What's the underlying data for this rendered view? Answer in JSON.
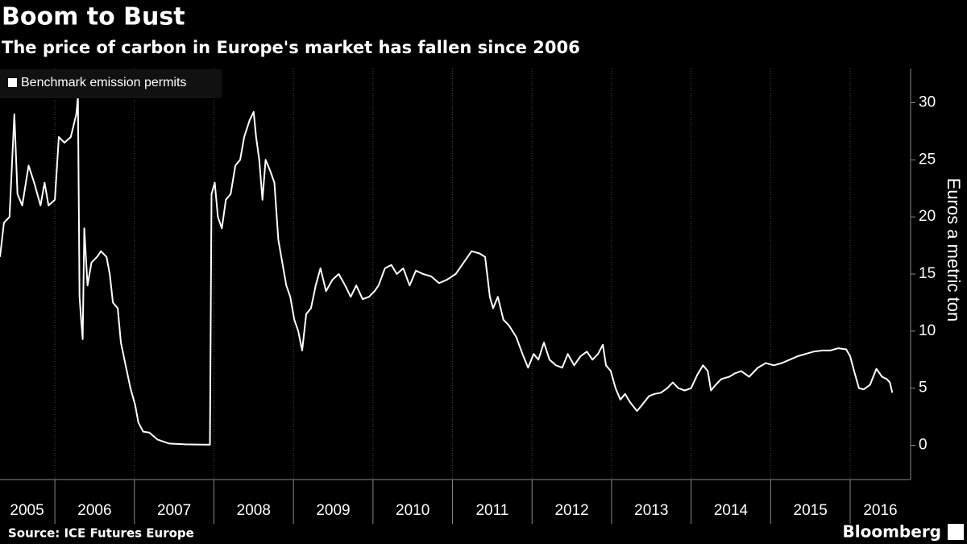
{
  "chart_data": {
    "type": "line",
    "title": "Boom to Bust",
    "subtitle": "The price of carbon in Europe's market has fallen since 2006",
    "y_label": "Euros a metric ton",
    "source": "Source: ICE Futures Europe",
    "brand": "Bloomberg",
    "legend": "top-left",
    "xlim": [
      2005.31,
      2016.76
    ],
    "ylim": [
      -3,
      33
    ],
    "yticks": [
      0,
      5,
      10,
      15,
      20,
      25,
      30
    ],
    "xticks": [
      {
        "value": 2005.65,
        "label": "2005"
      },
      {
        "value": 2006.5,
        "label": "2006"
      },
      {
        "value": 2007.5,
        "label": "2007"
      },
      {
        "value": 2008.5,
        "label": "2008"
      },
      {
        "value": 2009.5,
        "label": "2009"
      },
      {
        "value": 2010.5,
        "label": "2010"
      },
      {
        "value": 2011.5,
        "label": "2011"
      },
      {
        "value": 2012.5,
        "label": "2012"
      },
      {
        "value": 2013.5,
        "label": "2013"
      },
      {
        "value": 2014.5,
        "label": "2014"
      },
      {
        "value": 2015.5,
        "label": "2015"
      },
      {
        "value": 2016.38,
        "label": "2016"
      }
    ],
    "xgrid": [
      2006,
      2007,
      2008,
      2009,
      2010,
      2011,
      2012,
      2013,
      2014,
      2015,
      2016
    ],
    "x": [
      2005.31,
      2005.36,
      2005.43,
      2005.49,
      2005.53,
      2005.59,
      2005.67,
      2005.74,
      2005.82,
      2005.87,
      2005.92,
      2006.0,
      2006.05,
      2006.12,
      2006.2,
      2006.27,
      2006.29,
      2006.31,
      2006.33,
      2006.35,
      2006.37,
      2006.41,
      2006.46,
      2006.53,
      2006.58,
      2006.65,
      2006.69,
      2006.73,
      2006.79,
      2006.83,
      2006.89,
      2006.95,
      2007.01,
      2007.05,
      2007.11,
      2007.19,
      2007.29,
      2007.44,
      2007.64,
      2007.95,
      2007.97,
      2008.01,
      2008.05,
      2008.1,
      2008.15,
      2008.21,
      2008.27,
      2008.33,
      2008.38,
      2008.45,
      2008.5,
      2008.53,
      2008.57,
      2008.61,
      2008.65,
      2008.71,
      2008.76,
      2008.81,
      2008.86,
      2008.91,
      2008.96,
      2009.01,
      2009.06,
      2009.11,
      2009.16,
      2009.22,
      2009.28,
      2009.34,
      2009.41,
      2009.49,
      2009.57,
      2009.65,
      2009.72,
      2009.79,
      2009.87,
      2009.95,
      2010.02,
      2010.07,
      2010.15,
      2010.23,
      2010.3,
      2010.38,
      2010.46,
      2010.54,
      2010.63,
      2010.73,
      2010.83,
      2010.93,
      2011.04,
      2011.14,
      2011.24,
      2011.34,
      2011.41,
      2011.47,
      2011.51,
      2011.57,
      2011.64,
      2011.71,
      2011.8,
      2011.88,
      2011.95,
      2012.02,
      2012.08,
      2012.15,
      2012.22,
      2012.3,
      2012.38,
      2012.45,
      2012.53,
      2012.61,
      2012.69,
      2012.76,
      2012.83,
      2012.89,
      2012.93,
      2012.99,
      2013.05,
      2013.11,
      2013.17,
      2013.23,
      2013.32,
      2013.38,
      2013.47,
      2013.54,
      2013.62,
      2013.7,
      2013.77,
      2013.84,
      2013.92,
      2014.0,
      2014.08,
      2014.15,
      2014.21,
      2014.25,
      2014.31,
      2014.38,
      2014.48,
      2014.55,
      2014.63,
      2014.73,
      2014.84,
      2014.94,
      2015.04,
      2015.14,
      2015.24,
      2015.34,
      2015.44,
      2015.54,
      2015.65,
      2015.75,
      2015.85,
      2015.95,
      2016.0,
      2016.05,
      2016.11,
      2016.17,
      2016.25,
      2016.33,
      2016.4,
      2016.46,
      2016.5,
      2016.53
    ],
    "series": [
      {
        "name": "Benchmark emission permits",
        "color": "#ffffff",
        "values": [
          16.5,
          19.5,
          20,
          29,
          22,
          21,
          24.5,
          23,
          21,
          23,
          21,
          21.5,
          27,
          26.5,
          27,
          29,
          30.5,
          13,
          11,
          9.3,
          19,
          14,
          16,
          16.5,
          17,
          16.5,
          15,
          12.5,
          12,
          9,
          7,
          5,
          3.5,
          2,
          1.2,
          1.1,
          0.5,
          0.15,
          0.08,
          0.05,
          22,
          23,
          20,
          19,
          21.5,
          22,
          24.5,
          25,
          27,
          28.5,
          29.2,
          27,
          25,
          21.5,
          25,
          24,
          23,
          18,
          16,
          14,
          13,
          11,
          10,
          8.3,
          11.5,
          12,
          14,
          15.5,
          13.5,
          14.5,
          15,
          14,
          13,
          14,
          12.8,
          13,
          13.5,
          14,
          15.5,
          15.8,
          15,
          15.5,
          14,
          15.3,
          15,
          14.8,
          14.2,
          14.5,
          15,
          16,
          17,
          16.8,
          16.5,
          13,
          12,
          13,
          11,
          10.5,
          9.5,
          8,
          6.8,
          8,
          7.5,
          9,
          7.5,
          7,
          6.8,
          8,
          7,
          7.8,
          8.2,
          7.5,
          8,
          8.8,
          7,
          6.5,
          5,
          4,
          4.5,
          3.8,
          3,
          3.5,
          4.3,
          4.5,
          4.6,
          5,
          5.5,
          5,
          4.8,
          5,
          6.2,
          7,
          6.5,
          4.8,
          5.3,
          5.8,
          6,
          6.3,
          6.5,
          6,
          6.8,
          7.2,
          7,
          7.2,
          7.5,
          7.8,
          8,
          8.2,
          8.3,
          8.3,
          8.5,
          8.4,
          7.8,
          6.5,
          5,
          4.9,
          5.3,
          6.7,
          6,
          5.8,
          5.5,
          4.6
        ]
      }
    ]
  }
}
